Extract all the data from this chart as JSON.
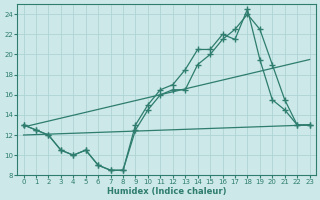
{
  "xlabel": "Humidex (Indice chaleur)",
  "background_color": "#cce8e8",
  "line_color": "#2e7d6e",
  "grid_color": "#afd4d4",
  "xlim": [
    -0.5,
    23.5
  ],
  "ylim": [
    8,
    25
  ],
  "xticks": [
    0,
    1,
    2,
    3,
    4,
    5,
    6,
    7,
    8,
    9,
    10,
    11,
    12,
    13,
    14,
    15,
    16,
    17,
    18,
    19,
    20,
    21,
    22,
    23
  ],
  "yticks": [
    8,
    10,
    12,
    14,
    16,
    18,
    20,
    22,
    24
  ],
  "line_upper_x": [
    0,
    1,
    2,
    3,
    4,
    5,
    6,
    7,
    8,
    9,
    10,
    11,
    12,
    13,
    14,
    15,
    16,
    17,
    18,
    19,
    20,
    21,
    22,
    23
  ],
  "line_upper_y": [
    13,
    12.5,
    12,
    10.5,
    10,
    10.5,
    9,
    8.5,
    8.5,
    13,
    15,
    16.5,
    17,
    18.5,
    20.5,
    20.5,
    22,
    21.5,
    24.5,
    19.5,
    15.5,
    14.5,
    13,
    13
  ],
  "line_lower_x": [
    0,
    1,
    2,
    3,
    4,
    5,
    6,
    7,
    8,
    9,
    10,
    11,
    12,
    13,
    14,
    15,
    16,
    17,
    18,
    19,
    20,
    21,
    22,
    23
  ],
  "line_lower_y": [
    13,
    12.5,
    12,
    10.5,
    10,
    10.5,
    9,
    8.5,
    8.5,
    12.5,
    14.5,
    16,
    16.5,
    16.5,
    19,
    20,
    21.5,
    22.5,
    24,
    22.5,
    19,
    15.5,
    13,
    13
  ],
  "trend1_x": [
    0,
    23
  ],
  "trend1_y": [
    12.8,
    19.5
  ],
  "trend2_x": [
    0,
    23
  ],
  "trend2_y": [
    12.0,
    13.0
  ],
  "marker": "+",
  "markersize": 4,
  "markeredgewidth": 1.0,
  "linewidth": 0.9
}
